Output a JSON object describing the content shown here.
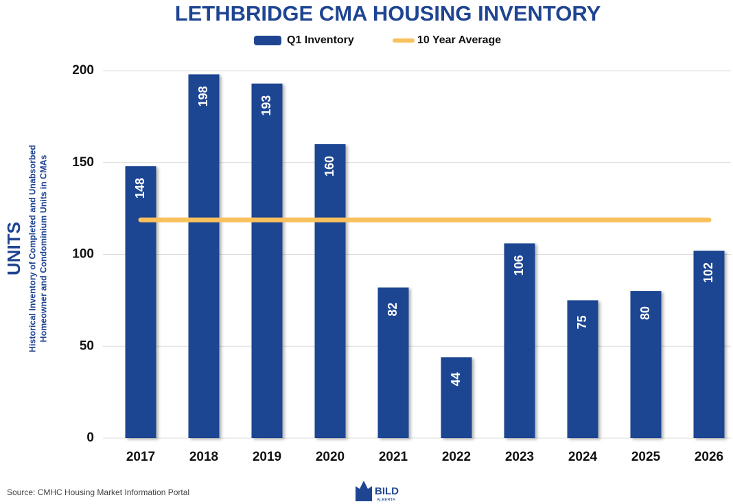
{
  "chart_data": {
    "type": "bar",
    "title": "LETHBRIDGE CMA HOUSING INVENTORY",
    "y_label": "UNITS",
    "y_sublabel": [
      "Historical Inventory of Completed and Unabsorbed",
      "Homeowner and Condominium Units in CMAs"
    ],
    "categories": [
      "2017",
      "2018",
      "2019",
      "2020",
      "2021",
      "2022",
      "2023",
      "2024",
      "2025",
      "2026"
    ],
    "series": [
      {
        "name": "Q1 Inventory",
        "type": "bar",
        "color": "#1f4592",
        "values": [
          148,
          198,
          193,
          160,
          82,
          44,
          106,
          75,
          80,
          102
        ]
      },
      {
        "name": "10 Year Average",
        "type": "line",
        "color": "#f9c15c",
        "values": [
          118.8,
          118.8,
          118.8,
          118.8,
          118.8,
          118.8,
          118.8,
          118.8,
          118.8,
          118.8
        ]
      }
    ],
    "ylim": [
      0,
      200
    ],
    "yticks": [
      0,
      50,
      100,
      150,
      200
    ],
    "grid": true,
    "source": "Source: CMHC Housing Market Information Portal",
    "logo": {
      "name": "BILD",
      "sub": "ALBERTA"
    }
  }
}
